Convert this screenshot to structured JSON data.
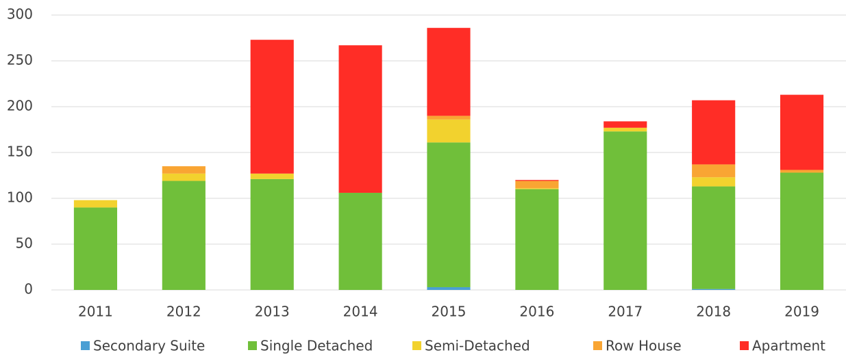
{
  "chart_data": {
    "type": "bar",
    "stacked": true,
    "categories": [
      "2011",
      "2012",
      "2013",
      "2014",
      "2015",
      "2016",
      "2017",
      "2018",
      "2019"
    ],
    "series": [
      {
        "name": "Secondary Suite",
        "color": "#4a9fd4",
        "values": [
          0,
          0,
          0,
          0,
          3,
          0,
          0,
          1,
          0
        ]
      },
      {
        "name": "Single Detached",
        "color": "#70bf3a",
        "values": [
          90,
          119,
          121,
          106,
          158,
          110,
          173,
          112,
          128
        ]
      },
      {
        "name": "Semi-Detached",
        "color": "#f2d22e",
        "values": [
          8,
          8,
          6,
          0,
          25,
          1,
          4,
          10,
          0
        ]
      },
      {
        "name": "Row House",
        "color": "#f9a533",
        "values": [
          0,
          8,
          0,
          0,
          4,
          8,
          0,
          14,
          3
        ]
      },
      {
        "name": "Apartment",
        "color": "#ff2d26",
        "values": [
          0,
          0,
          146,
          161,
          96,
          1,
          7,
          70,
          82
        ]
      }
    ],
    "ylim": [
      0,
      300
    ],
    "yticks": [
      0,
      50,
      100,
      150,
      200,
      250,
      300
    ],
    "grid": true,
    "legend": "bottom"
  }
}
